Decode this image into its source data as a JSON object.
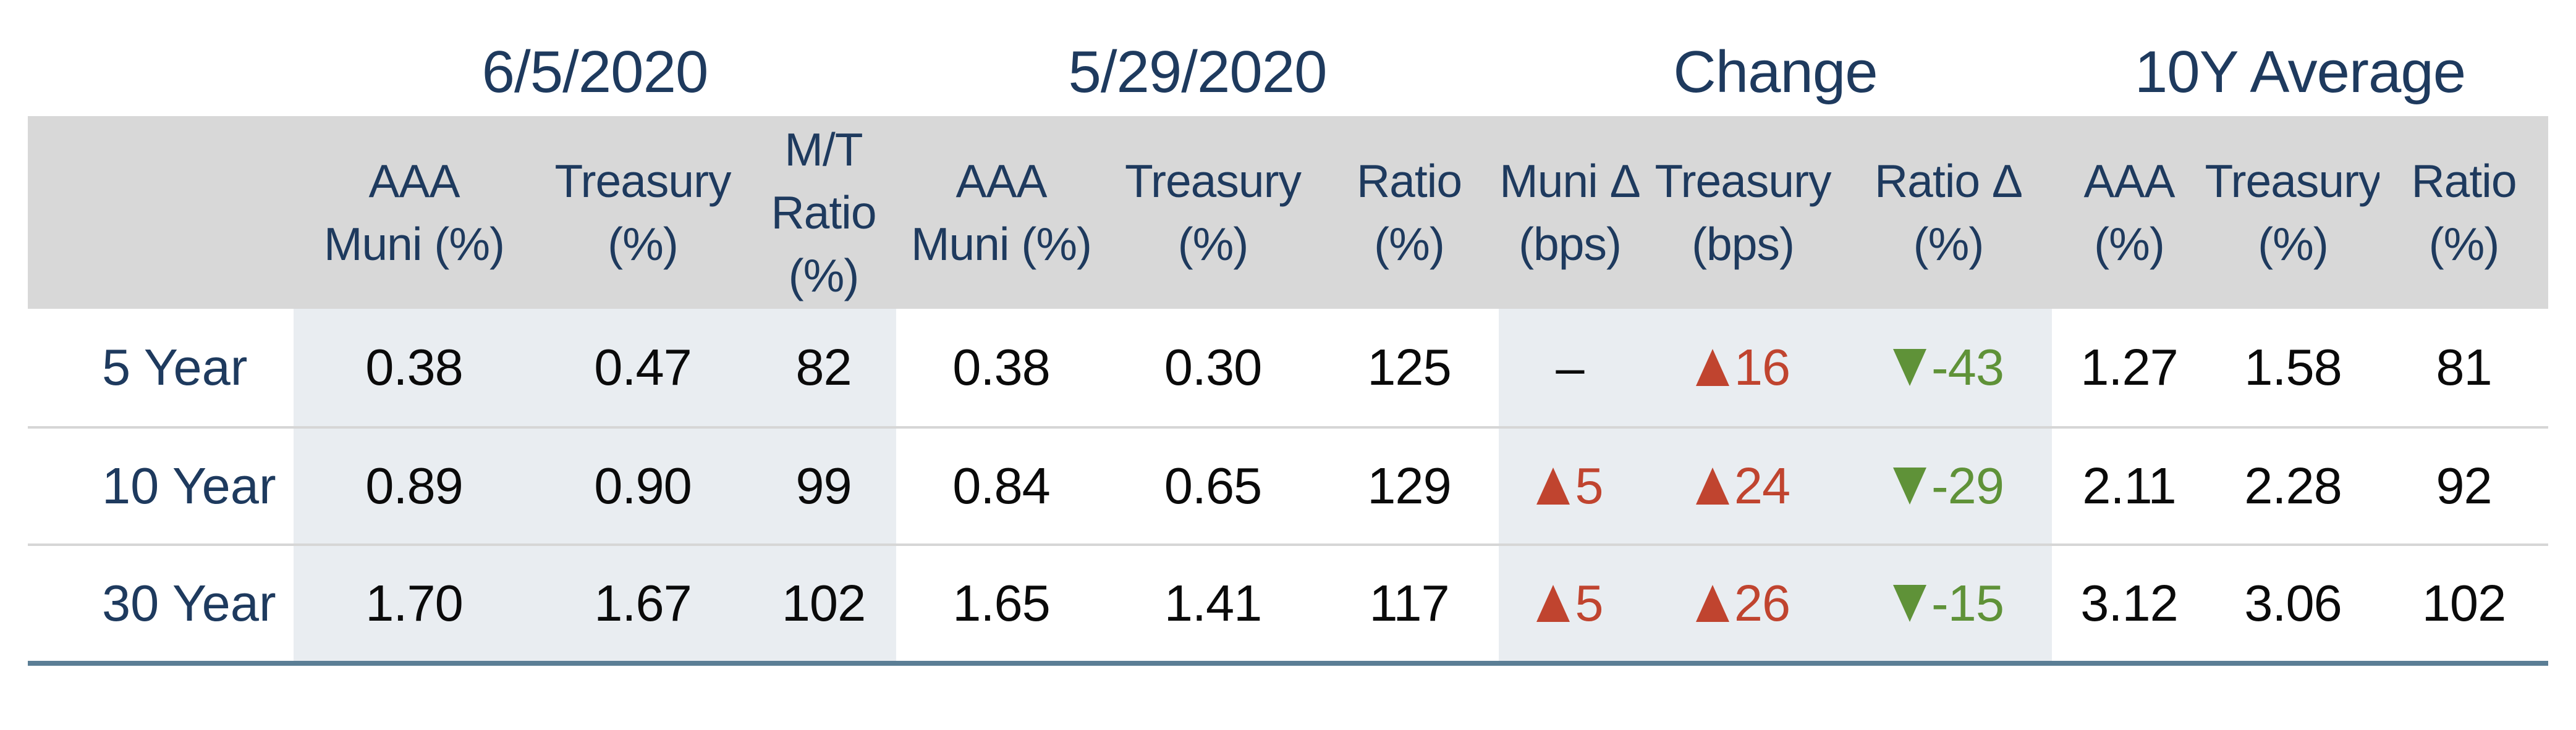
{
  "groups": [
    {
      "label": "6/5/2020"
    },
    {
      "label": "5/29/2020"
    },
    {
      "label": "Change"
    },
    {
      "label": "10Y Average"
    }
  ],
  "headers": [
    {
      "l1": "AAA",
      "l2": "Muni (%)"
    },
    {
      "l1": "Treasury",
      "l2": "(%)"
    },
    {
      "l1": "M/T",
      "l2": "Ratio (%)"
    },
    {
      "l1": "AAA",
      "l2": "Muni (%)"
    },
    {
      "l1": "Treasury",
      "l2": "(%)"
    },
    {
      "l1": "Ratio",
      "l2": "(%)"
    },
    {
      "l1": "Muni Δ",
      "l2": "(bps)"
    },
    {
      "l1": "Treasury",
      "l2": "(bps)"
    },
    {
      "l1": "Ratio Δ",
      "l2": "(%)"
    },
    {
      "l1": "AAA",
      "l2": "(%)"
    },
    {
      "l1": "Treasury",
      "l2": "(%)"
    },
    {
      "l1": "Ratio",
      "l2": "(%)"
    }
  ],
  "rows": [
    {
      "label": "5 Year",
      "d1": [
        "0.38",
        "0.47",
        "82"
      ],
      "d2": [
        "0.38",
        "0.30",
        "125"
      ],
      "chg": [
        {
          "v": "–",
          "dir": "none"
        },
        {
          "v": "16",
          "dir": "up"
        },
        {
          "v": "-43",
          "dir": "down"
        }
      ],
      "d4": [
        "1.27",
        "1.58",
        "81"
      ]
    },
    {
      "label": "10 Year",
      "d1": [
        "0.89",
        "0.90",
        "99"
      ],
      "d2": [
        "0.84",
        "0.65",
        "129"
      ],
      "chg": [
        {
          "v": "5",
          "dir": "up"
        },
        {
          "v": "24",
          "dir": "up"
        },
        {
          "v": "-29",
          "dir": "down"
        }
      ],
      "d4": [
        "2.11",
        "2.28",
        "92"
      ]
    },
    {
      "label": "30 Year",
      "d1": [
        "1.70",
        "1.67",
        "102"
      ],
      "d2": [
        "1.65",
        "1.41",
        "117"
      ],
      "chg": [
        {
          "v": "5",
          "dir": "up"
        },
        {
          "v": "26",
          "dir": "up"
        },
        {
          "v": "-15",
          "dir": "down"
        }
      ],
      "d4": [
        "3.12",
        "3.06",
        "102"
      ]
    }
  ],
  "colors": {
    "navy_text": "#1e3a5e",
    "data_text": "#0a0a0a",
    "up_red": "#c0442f",
    "down_green": "#5f9238",
    "header_band": "#d8d8d8",
    "group_shade": "#e9edf1",
    "row_separator": "#d6d6d6",
    "bottom_rule": "#5b7e95"
  },
  "chart_data": {
    "type": "table",
    "title": "AAA Muni vs Treasury yields and ratios",
    "column_groups": [
      "6/5/2020",
      "5/29/2020",
      "Change",
      "10Y Average"
    ],
    "columns": [
      "AAA Muni (%)",
      "Treasury (%)",
      "M/T Ratio (%)",
      "AAA Muni (%)",
      "Treasury (%)",
      "Ratio (%)",
      "Muni Δ (bps)",
      "Treasury (bps)",
      "Ratio Δ (%)",
      "AAA (%)",
      "Treasury (%)",
      "Ratio (%)"
    ],
    "rows": [
      {
        "label": "5 Year",
        "values": [
          "0.38",
          "0.47",
          "82",
          "0.38",
          "0.30",
          "125",
          "–",
          "▲16",
          "▼-43",
          "1.27",
          "1.58",
          "81"
        ]
      },
      {
        "label": "10 Year",
        "values": [
          "0.89",
          "0.90",
          "99",
          "0.84",
          "0.65",
          "129",
          "▲5",
          "▲24",
          "▼-29",
          "2.11",
          "2.28",
          "92"
        ]
      },
      {
        "label": "30 Year",
        "values": [
          "1.70",
          "1.67",
          "102",
          "1.65",
          "1.41",
          "117",
          "▲5",
          "▲26",
          "▼-15",
          "3.12",
          "3.06",
          "102"
        ]
      }
    ],
    "layout": {
      "up_marker_color": "#c0442f",
      "down_marker_color": "#5f9238",
      "shaded_groups": [
        "6/5/2020",
        "Change"
      ]
    }
  }
}
